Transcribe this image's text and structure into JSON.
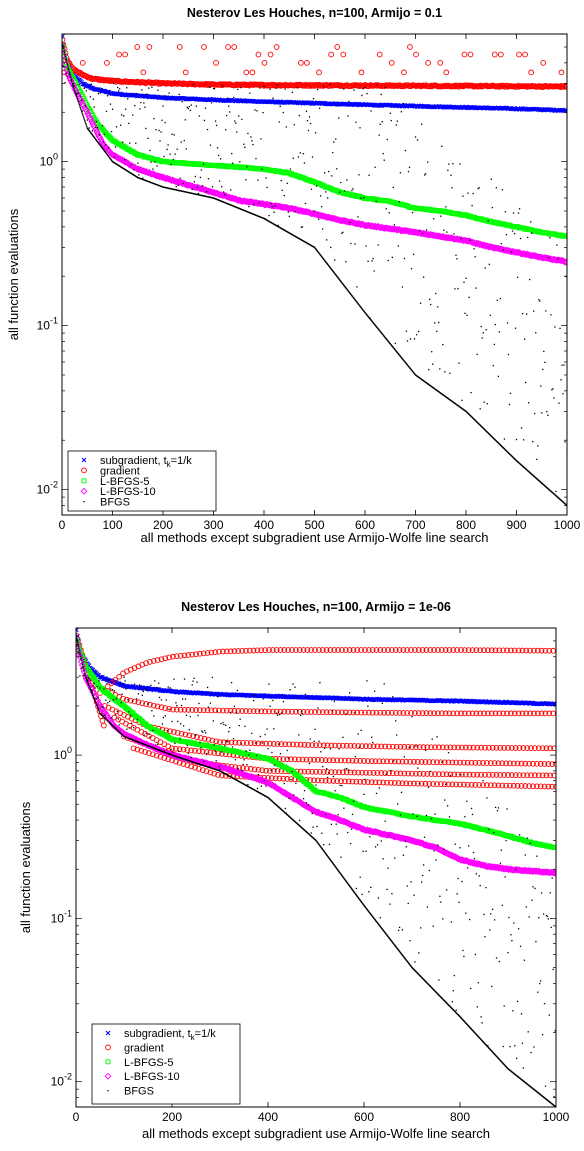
{
  "chart_data": [
    {
      "type": "scatter",
      "title": "Nesterov Les Houches, n=100, Armijo = 0.1",
      "xlabel": "all methods except subgradient use Armijo-Wolfe line search",
      "ylabel": "all function evaluations",
      "xlim": [
        0,
        1000
      ],
      "ylim": [
        0.007,
        6
      ],
      "yscale": "log",
      "xticks": [
        "0",
        "100",
        "200",
        "300",
        "400",
        "500",
        "600",
        "700",
        "800",
        "900",
        "1000"
      ],
      "yticks": [
        {
          "base": "10",
          "exp": "-2"
        },
        {
          "base": "10",
          "exp": "-1"
        },
        {
          "base": "10",
          "exp": "0"
        }
      ],
      "legend_position": "bottom-left",
      "series": [
        {
          "name": "subgradient, t",
          "sub": "k",
          "suffix": "=1/k",
          "marker": "x",
          "color": "#0000ff",
          "points": [
            [
              1,
              5.8
            ],
            [
              5,
              4.6
            ],
            [
              10,
              4.0
            ],
            [
              20,
              3.5
            ],
            [
              40,
              3.0
            ],
            [
              60,
              2.8
            ],
            [
              80,
              2.7
            ],
            [
              100,
              2.6
            ],
            [
              200,
              2.45
            ],
            [
              300,
              2.38
            ],
            [
              400,
              2.32
            ],
            [
              500,
              2.27
            ],
            [
              600,
              2.22
            ],
            [
              700,
              2.18
            ],
            [
              800,
              2.14
            ],
            [
              900,
              2.1
            ],
            [
              1000,
              2.05
            ]
          ]
        },
        {
          "name": "gradient",
          "marker": "circle",
          "color": "#ff0000",
          "points": [
            [
              1,
              5.5
            ],
            [
              10,
              4.2
            ],
            [
              20,
              3.7
            ],
            [
              40,
              3.4
            ],
            [
              60,
              3.2
            ],
            [
              100,
              3.1
            ],
            [
              200,
              3.0
            ],
            [
              300,
              2.95
            ],
            [
              400,
              2.93
            ],
            [
              500,
              2.92
            ],
            [
              600,
              2.91
            ],
            [
              700,
              2.9
            ],
            [
              800,
              2.89
            ],
            [
              900,
              2.88
            ],
            [
              1000,
              2.87
            ]
          ],
          "outliers_y": [
            5.0,
            4.5,
            4.0,
            3.5
          ]
        },
        {
          "name": "L-BFGS-5",
          "marker": "square",
          "color": "#00ff00",
          "points": [
            [
              1,
              5.0
            ],
            [
              10,
              3.8
            ],
            [
              30,
              2.9
            ],
            [
              50,
              2.2
            ],
            [
              70,
              1.7
            ],
            [
              100,
              1.35
            ],
            [
              150,
              1.1
            ],
            [
              200,
              1.0
            ],
            [
              300,
              0.95
            ],
            [
              400,
              0.9
            ],
            [
              450,
              0.85
            ],
            [
              500,
              0.75
            ],
            [
              550,
              0.65
            ],
            [
              600,
              0.6
            ],
            [
              650,
              0.57
            ],
            [
              700,
              0.52
            ],
            [
              750,
              0.5
            ],
            [
              800,
              0.47
            ],
            [
              850,
              0.43
            ],
            [
              900,
              0.4
            ],
            [
              950,
              0.37
            ],
            [
              1000,
              0.35
            ]
          ]
        },
        {
          "name": "L-BFGS-10",
          "marker": "diamond",
          "color": "#ff00ff",
          "points": [
            [
              1,
              4.8
            ],
            [
              10,
              3.5
            ],
            [
              30,
              2.6
            ],
            [
              50,
              2.0
            ],
            [
              80,
              1.3
            ],
            [
              100,
              1.1
            ],
            [
              150,
              0.9
            ],
            [
              200,
              0.8
            ],
            [
              250,
              0.72
            ],
            [
              300,
              0.65
            ],
            [
              350,
              0.58
            ],
            [
              400,
              0.55
            ],
            [
              450,
              0.52
            ],
            [
              500,
              0.48
            ],
            [
              550,
              0.44
            ],
            [
              600,
              0.41
            ],
            [
              650,
              0.39
            ],
            [
              700,
              0.37
            ],
            [
              750,
              0.35
            ],
            [
              800,
              0.33
            ],
            [
              850,
              0.3
            ],
            [
              900,
              0.28
            ],
            [
              950,
              0.26
            ],
            [
              1000,
              0.245
            ]
          ]
        },
        {
          "name": "BFGS",
          "marker": "dot",
          "color": "#000000",
          "points": [
            [
              1,
              5.2
            ],
            [
              20,
              3.0
            ],
            [
              50,
              1.6
            ],
            [
              100,
              1.0
            ],
            [
              150,
              0.8
            ],
            [
              200,
              0.7
            ],
            [
              300,
              0.6
            ],
            [
              400,
              0.45
            ],
            [
              500,
              0.3
            ],
            [
              600,
              0.12
            ],
            [
              700,
              0.05
            ],
            [
              800,
              0.03
            ],
            [
              900,
              0.015
            ],
            [
              1000,
              0.008
            ]
          ]
        }
      ]
    },
    {
      "type": "scatter",
      "title": "Nesterov Les Houches, n=100, Armijo = 1e-06",
      "xlabel": "all methods except subgradient use Armijo-Wolfe line search",
      "ylabel": "all function evaluations",
      "xlim": [
        0,
        1000
      ],
      "ylim": [
        0.007,
        6
      ],
      "yscale": "log",
      "xticks": [
        "0",
        "200",
        "400",
        "600",
        "800",
        "1000"
      ],
      "yticks": [
        {
          "base": "10",
          "exp": "-2"
        },
        {
          "base": "10",
          "exp": "-1"
        },
        {
          "base": "10",
          "exp": "0"
        }
      ],
      "legend_position": "bottom-left",
      "series": [
        {
          "name": "subgradient, t",
          "sub": "k",
          "suffix": "=1/k",
          "marker": "x",
          "color": "#0000ff",
          "points": [
            [
              1,
              5.8
            ],
            [
              10,
              4.2
            ],
            [
              30,
              3.4
            ],
            [
              50,
              3.0
            ],
            [
              80,
              2.8
            ],
            [
              100,
              2.65
            ],
            [
              200,
              2.45
            ],
            [
              300,
              2.35
            ],
            [
              400,
              2.3
            ],
            [
              500,
              2.25
            ],
            [
              600,
              2.2
            ],
            [
              700,
              2.17
            ],
            [
              800,
              2.14
            ],
            [
              900,
              2.1
            ],
            [
              1000,
              2.05
            ]
          ]
        },
        {
          "name": "gradient",
          "marker": "circle",
          "color": "#ff0000",
          "branches": [
            [
              [
                50,
                2.4
              ],
              [
                100,
                3.2
              ],
              [
                150,
                3.7
              ],
              [
                200,
                4.0
              ],
              [
                300,
                4.3
              ],
              [
                400,
                4.4
              ],
              [
                600,
                4.4
              ],
              [
                800,
                4.4
              ],
              [
                1000,
                4.35
              ]
            ],
            [
              [
                50,
                2.6
              ],
              [
                100,
                2.2
              ],
              [
                200,
                1.9
              ],
              [
                400,
                1.85
              ],
              [
                600,
                1.82
              ],
              [
                800,
                1.8
              ],
              [
                1000,
                1.8
              ]
            ],
            [
              [
                60,
                2.0
              ],
              [
                150,
                1.5
              ],
              [
                300,
                1.2
              ],
              [
                500,
                1.15
              ],
              [
                700,
                1.12
              ],
              [
                1000,
                1.1
              ]
            ],
            [
              [
                80,
                1.7
              ],
              [
                200,
                1.1
              ],
              [
                400,
                0.95
              ],
              [
                600,
                0.92
              ],
              [
                800,
                0.9
              ],
              [
                1000,
                0.88
              ]
            ],
            [
              [
                100,
                1.3
              ],
              [
                250,
                0.9
              ],
              [
                400,
                0.8
              ],
              [
                600,
                0.78
              ],
              [
                800,
                0.76
              ],
              [
                1000,
                0.75
              ]
            ],
            [
              [
                120,
                1.1
              ],
              [
                300,
                0.75
              ],
              [
                500,
                0.7
              ],
              [
                700,
                0.67
              ],
              [
                900,
                0.65
              ],
              [
                1000,
                0.64
              ]
            ]
          ]
        },
        {
          "name": "L-BFGS-5",
          "marker": "square",
          "color": "#00ff00",
          "points": [
            [
              1,
              5.0
            ],
            [
              20,
              3.5
            ],
            [
              50,
              2.6
            ],
            [
              80,
              2.2
            ],
            [
              100,
              2.0
            ],
            [
              150,
              1.5
            ],
            [
              200,
              1.25
            ],
            [
              300,
              1.1
            ],
            [
              400,
              0.95
            ],
            [
              450,
              0.8
            ],
            [
              500,
              0.6
            ],
            [
              550,
              0.55
            ],
            [
              600,
              0.48
            ],
            [
              700,
              0.42
            ],
            [
              800,
              0.38
            ],
            [
              850,
              0.35
            ],
            [
              900,
              0.32
            ],
            [
              950,
              0.29
            ],
            [
              1000,
              0.27
            ]
          ]
        },
        {
          "name": "L-BFGS-10",
          "marker": "diamond",
          "color": "#ff00ff",
          "points": [
            [
              1,
              4.8
            ],
            [
              20,
              3.0
            ],
            [
              50,
              2.0
            ],
            [
              80,
              1.5
            ],
            [
              100,
              1.35
            ],
            [
              150,
              1.15
            ],
            [
              200,
              1.0
            ],
            [
              300,
              0.85
            ],
            [
              400,
              0.68
            ],
            [
              450,
              0.55
            ],
            [
              500,
              0.45
            ],
            [
              550,
              0.4
            ],
            [
              600,
              0.35
            ],
            [
              700,
              0.3
            ],
            [
              750,
              0.27
            ],
            [
              800,
              0.23
            ],
            [
              850,
              0.21
            ],
            [
              900,
              0.2
            ],
            [
              950,
              0.195
            ],
            [
              1000,
              0.19
            ]
          ]
        },
        {
          "name": "BFGS",
          "marker": "dot",
          "color": "#000000",
          "points": [
            [
              1,
              5.2
            ],
            [
              20,
              3.0
            ],
            [
              50,
              1.8
            ],
            [
              100,
              1.3
            ],
            [
              200,
              1.0
            ],
            [
              300,
              0.8
            ],
            [
              400,
              0.55
            ],
            [
              500,
              0.3
            ],
            [
              600,
              0.12
            ],
            [
              700,
              0.05
            ],
            [
              800,
              0.025
            ],
            [
              900,
              0.012
            ],
            [
              1000,
              0.007
            ]
          ]
        }
      ]
    }
  ]
}
